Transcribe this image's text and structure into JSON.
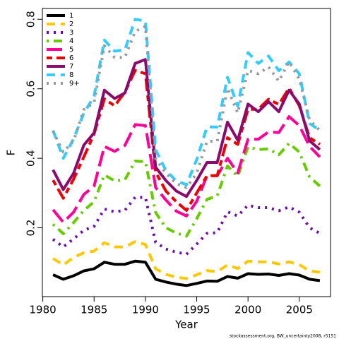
{
  "chart_data": {
    "type": "line",
    "xlabel": "Year",
    "ylabel": "F",
    "caption": "stockassessment.org, BW_uncertainty2008, r5151",
    "x": [
      1981,
      1982,
      1983,
      1984,
      1985,
      1986,
      1987,
      1988,
      1989,
      1990,
      1991,
      1992,
      1993,
      1994,
      1995,
      1996,
      1997,
      1998,
      1999,
      2000,
      2001,
      2002,
      2003,
      2004,
      2005,
      2006,
      2007
    ],
    "xlim": [
      1979.96,
      2008.04
    ],
    "xticks": [
      1980,
      1985,
      1990,
      1995,
      2000,
      2005
    ],
    "ylim": [
      0.002,
      0.831
    ],
    "yticks": [
      0.2,
      0.4,
      0.6,
      0.8
    ],
    "legend_position": "top-left",
    "series": [
      {
        "name": "1",
        "color": "#000000",
        "dash": "solid",
        "values": [
          0.065,
          0.052,
          0.062,
          0.076,
          0.082,
          0.101,
          0.095,
          0.095,
          0.104,
          0.101,
          0.052,
          0.044,
          0.038,
          0.034,
          0.04,
          0.047,
          0.046,
          0.06,
          0.055,
          0.068,
          0.066,
          0.067,
          0.063,
          0.068,
          0.064,
          0.052,
          0.048
        ]
      },
      {
        "name": "2",
        "color": "#ffc800",
        "dash": "dashed",
        "values": [
          0.112,
          0.093,
          0.115,
          0.128,
          0.133,
          0.157,
          0.145,
          0.145,
          0.16,
          0.152,
          0.082,
          0.066,
          0.058,
          0.054,
          0.065,
          0.077,
          0.074,
          0.093,
          0.083,
          0.104,
          0.102,
          0.102,
          0.096,
          0.102,
          0.094,
          0.076,
          0.072
        ]
      },
      {
        "name": "3",
        "color": "#6a0dad",
        "dash": "dotted",
        "values": [
          0.167,
          0.145,
          0.168,
          0.193,
          0.204,
          0.254,
          0.246,
          0.25,
          0.288,
          0.287,
          0.158,
          0.139,
          0.13,
          0.124,
          0.153,
          0.184,
          0.186,
          0.246,
          0.234,
          0.265,
          0.258,
          0.258,
          0.249,
          0.26,
          0.245,
          0.2,
          0.184
        ]
      },
      {
        "name": "4",
        "color": "#66cc00",
        "dash": "dotdash",
        "values": [
          0.21,
          0.183,
          0.215,
          0.25,
          0.275,
          0.352,
          0.335,
          0.338,
          0.392,
          0.39,
          0.244,
          0.2,
          0.185,
          0.176,
          0.226,
          0.282,
          0.292,
          0.378,
          0.348,
          0.433,
          0.425,
          0.427,
          0.41,
          0.443,
          0.418,
          0.346,
          0.32
        ]
      },
      {
        "name": "5",
        "color": "#ff0099",
        "dash": "longdash",
        "values": [
          0.252,
          0.216,
          0.245,
          0.296,
          0.32,
          0.434,
          0.42,
          0.437,
          0.497,
          0.494,
          0.316,
          0.28,
          0.248,
          0.234,
          0.276,
          0.35,
          0.35,
          0.4,
          0.358,
          0.455,
          0.455,
          0.476,
          0.474,
          0.52,
          0.494,
          0.434,
          0.404
        ]
      },
      {
        "name": "6",
        "color": "#ee0000",
        "dash": "twodash",
        "values": [
          0.337,
          0.285,
          0.34,
          0.404,
          0.47,
          0.571,
          0.551,
          0.59,
          0.653,
          0.643,
          0.36,
          0.306,
          0.275,
          0.25,
          0.3,
          0.35,
          0.35,
          0.459,
          0.44,
          0.541,
          0.541,
          0.57,
          0.555,
          0.602,
          0.551,
          0.459,
          0.44
        ]
      },
      {
        "name": "7",
        "color": "#8b0a6e",
        "dash": "solid",
        "values": [
          0.367,
          0.31,
          0.357,
          0.438,
          0.473,
          0.596,
          0.572,
          0.588,
          0.673,
          0.684,
          0.374,
          0.336,
          0.306,
          0.29,
          0.336,
          0.388,
          0.388,
          0.504,
          0.452,
          0.556,
          0.534,
          0.563,
          0.534,
          0.596,
          0.556,
          0.45,
          0.425
        ]
      },
      {
        "name": "8",
        "color": "#33ccff",
        "dash": "dashed",
        "values": [
          0.48,
          0.4,
          0.456,
          0.53,
          0.578,
          0.74,
          0.708,
          0.712,
          0.8,
          0.795,
          0.424,
          0.365,
          0.335,
          0.324,
          0.396,
          0.49,
          0.49,
          0.633,
          0.55,
          0.704,
          0.673,
          0.694,
          0.652,
          0.677,
          0.643,
          0.5,
          0.48
        ]
      },
      {
        "name": "9+",
        "color": "#999999",
        "dash": "dotted",
        "values": [
          0.478,
          0.418,
          0.45,
          0.54,
          0.56,
          0.724,
          0.69,
          0.69,
          0.765,
          0.78,
          0.398,
          0.357,
          0.327,
          0.316,
          0.357,
          0.449,
          0.449,
          0.602,
          0.53,
          0.653,
          0.643,
          0.663,
          0.622,
          0.678,
          0.628,
          0.51,
          0.48
        ]
      }
    ]
  }
}
